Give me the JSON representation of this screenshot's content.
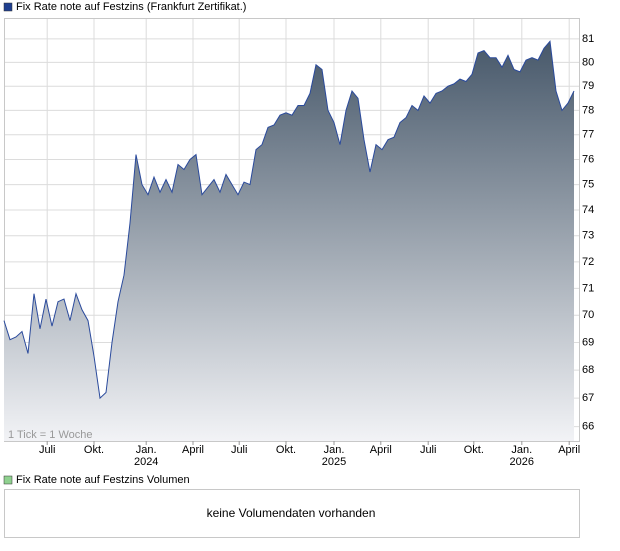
{
  "chart_data": {
    "type": "area",
    "log_scale": true,
    "grid": true,
    "note": "1 Tick = 1 Woche",
    "series": [
      {
        "name": "Fix Rate note auf Festzins (Frankfurt Zertifikat.)",
        "color": "#2a4a9c",
        "legend_color": "#1f3f8f",
        "fill_top": "#47586a",
        "fill_bottom": "#f2f3f6",
        "values": [
          69.8,
          69.1,
          69.2,
          69.4,
          68.6,
          70.8,
          69.5,
          70.6,
          69.6,
          70.5,
          70.6,
          69.8,
          70.8,
          70.2,
          69.8,
          68.5,
          67.0,
          67.2,
          69.0,
          70.5,
          71.5,
          73.5,
          76.2,
          75.0,
          74.6,
          75.3,
          74.7,
          75.2,
          74.7,
          75.8,
          75.6,
          76.0,
          76.2,
          74.6,
          74.9,
          75.2,
          74.7,
          75.4,
          75.0,
          74.6,
          75.1,
          75.0,
          76.4,
          76.6,
          77.3,
          77.4,
          77.8,
          77.9,
          77.8,
          78.2,
          78.2,
          78.7,
          79.9,
          79.7,
          78.0,
          77.5,
          76.6,
          78.0,
          78.8,
          78.5,
          76.8,
          75.5,
          76.6,
          76.4,
          76.8,
          76.9,
          77.5,
          77.7,
          78.2,
          78.0,
          78.6,
          78.3,
          78.7,
          78.8,
          79.0,
          79.1,
          79.3,
          79.2,
          79.5,
          80.4,
          80.5,
          80.2,
          80.2,
          79.8,
          80.3,
          79.7,
          79.6,
          80.1,
          80.2,
          80.1,
          80.6,
          80.9,
          78.8,
          78.0,
          78.3,
          78.8
        ]
      }
    ],
    "xlim": [
      0,
      95
    ],
    "xticks": [
      {
        "value": 7.2,
        "label": "Juli"
      },
      {
        "value": 15,
        "label": "Okt."
      },
      {
        "value": 23.7,
        "label": "Jan.",
        "year": "2024"
      },
      {
        "value": 31.5,
        "label": "April"
      },
      {
        "value": 39.2,
        "label": "Juli"
      },
      {
        "value": 47,
        "label": "Okt."
      },
      {
        "value": 55,
        "label": "Jan.",
        "year": "2025"
      },
      {
        "value": 62.8,
        "label": "April"
      },
      {
        "value": 70.7,
        "label": "Juli"
      },
      {
        "value": 78.3,
        "label": "Okt."
      },
      {
        "value": 86.3,
        "label": "Jan.",
        "year": "2026"
      },
      {
        "value": 94.2,
        "label": "April"
      }
    ],
    "ylim": [
      65.5,
      81.9
    ],
    "yticks": [
      66,
      67,
      68,
      69,
      70,
      71,
      72,
      73,
      74,
      75,
      76,
      77,
      78,
      79,
      80,
      81
    ],
    "volume": {
      "legend": "Fix Rate note auf Festzins Volumen",
      "legend_color": "#8fd18f",
      "message": "keine Volumendaten vorhanden"
    }
  }
}
